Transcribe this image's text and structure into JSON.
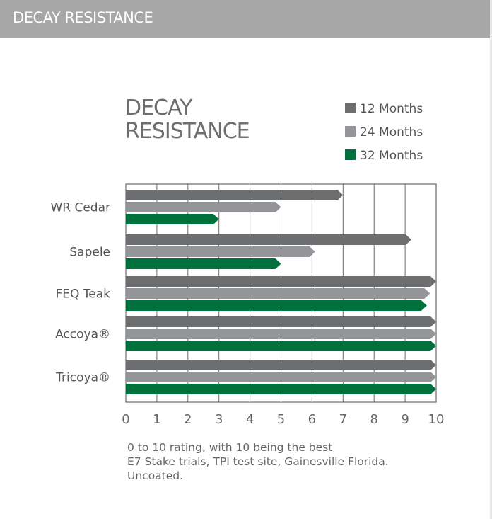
{
  "header": {
    "title": "DECAY RESISTANCE"
  },
  "colors": {
    "header_bg": "#a7a7a7",
    "series": [
      "#6d6e70",
      "#939598",
      "#00703c"
    ]
  },
  "notes": [
    "0 to 10 rating, with 10 being the best",
    "E7 Stake trials, TPI test site, Gainesville Florida.",
    "Uncoated."
  ],
  "chart_data": {
    "type": "bar",
    "orientation": "horizontal",
    "title_lines": [
      "DECAY",
      "RESISTANCE"
    ],
    "categories": [
      "WR Cedar",
      "Sapele",
      "FEQ Teak",
      "Accoya®",
      "Tricoya®"
    ],
    "series": [
      {
        "name": "12 Months",
        "color": "#6d6e70",
        "values": [
          7.0,
          9.2,
          10.0,
          10.0,
          10.0
        ]
      },
      {
        "name": "24 Months",
        "color": "#939598",
        "values": [
          5.0,
          6.1,
          9.8,
          10.0,
          10.0
        ]
      },
      {
        "name": "32 Months",
        "color": "#00703c",
        "values": [
          3.0,
          5.0,
          9.7,
          10.0,
          10.0
        ]
      }
    ],
    "xlim": [
      0,
      10
    ],
    "xticks": [
      "0",
      "1",
      "2",
      "3",
      "4",
      "5",
      "6",
      "7",
      "8",
      "9",
      "10"
    ],
    "grid": true,
    "legend_position": "top-right"
  }
}
